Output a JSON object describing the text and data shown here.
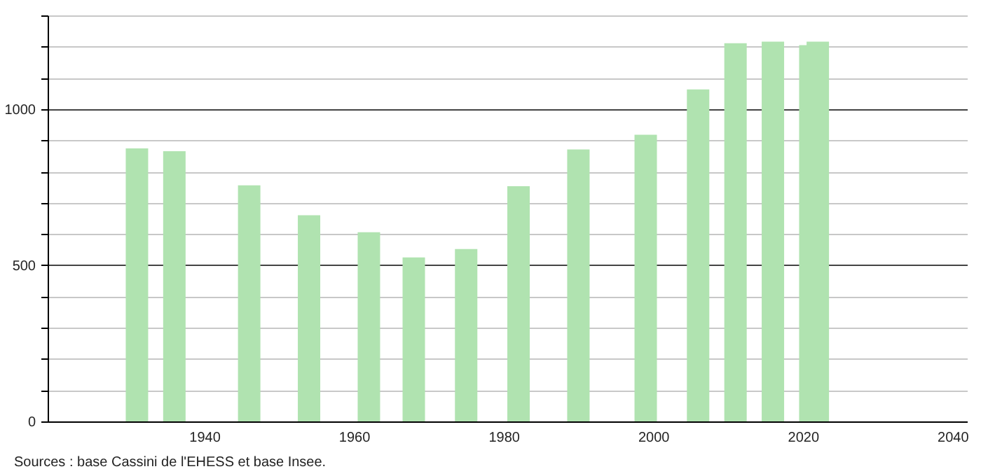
{
  "chart_data": {
    "type": "bar",
    "x": [
      1931,
      1936,
      1946,
      1954,
      1962,
      1968,
      1975,
      1982,
      1990,
      1999,
      2006,
      2011,
      2016,
      2021,
      2022
    ],
    "values": [
      874,
      865,
      756,
      660,
      606,
      525,
      552,
      753,
      871,
      918,
      1063,
      1211,
      1216,
      1205,
      1216
    ],
    "color": "#b0e3b0",
    "xlim": [
      1920,
      2041
    ],
    "xticks": [
      1940,
      1960,
      1980,
      2000,
      2020,
      2040
    ],
    "ylim": [
      0,
      1300
    ],
    "yticks": [
      0,
      {
        "value": 100,
        "label": null
      },
      {
        "value": 200,
        "label": null
      },
      {
        "value": 300,
        "label": null
      },
      {
        "value": 400,
        "label": null
      },
      500,
      {
        "value": 600,
        "label": null
      },
      {
        "value": 700,
        "label": null
      },
      {
        "value": 800,
        "label": null
      },
      {
        "value": 900,
        "label": null
      },
      1000,
      {
        "value": 1100,
        "label": null
      },
      {
        "value": 1200,
        "label": null
      },
      {
        "value": 1300,
        "label": null
      }
    ],
    "grid": "y",
    "annotations": [
      "Sources : base Cassini de l'EHESS et base Insee."
    ]
  }
}
